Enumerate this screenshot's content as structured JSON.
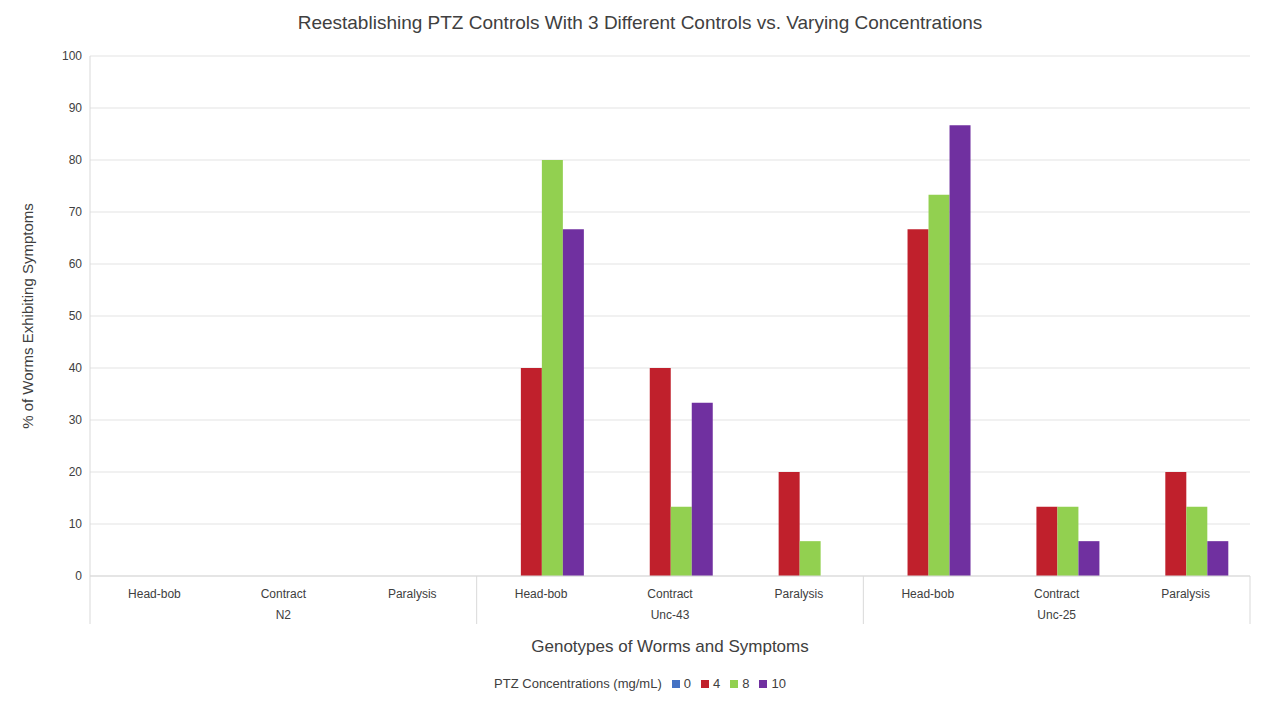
{
  "chart_data": {
    "type": "bar",
    "title": "Reestablishing PTZ Controls With 3 Different Controls vs. Varying Concentrations",
    "x_label": "Genotypes of Worms and Symptoms",
    "y_label": "% of Worms Exhibiting Symptoms",
    "legend_title": "PTZ Concentrations (mg/mL)",
    "categories": [
      "Head-bob",
      "Contract",
      "Paralysis",
      "Head-bob",
      "Contract",
      "Paralysis",
      "Head-bob",
      "Contract",
      "Paralysis"
    ],
    "groups": [
      "N2",
      "N2",
      "N2",
      "Unc-43",
      "Unc-43",
      "Unc-43",
      "Unc-25",
      "Unc-25",
      "Unc-25"
    ],
    "series": [
      {
        "name": "0",
        "color": "#4472c4",
        "values": [
          0,
          0,
          0,
          0,
          0,
          0,
          0,
          0,
          0
        ]
      },
      {
        "name": "4",
        "color": "#c0202c",
        "values": [
          0,
          0,
          0,
          40,
          40,
          20,
          66.7,
          13.3,
          20
        ]
      },
      {
        "name": "8",
        "color": "#92d050",
        "values": [
          0,
          0,
          0,
          80,
          13.3,
          6.7,
          73.3,
          13.3,
          13.3
        ]
      },
      {
        "name": "10",
        "color": "#7030a0",
        "values": [
          0,
          0,
          0,
          66.7,
          33.3,
          0,
          86.7,
          6.7,
          6.7
        ]
      }
    ],
    "ylim": [
      0,
      100
    ],
    "yticks": [
      0,
      10,
      20,
      30,
      40,
      50,
      60,
      70,
      80,
      90,
      100
    ],
    "grid": true,
    "legend": "bottom"
  }
}
